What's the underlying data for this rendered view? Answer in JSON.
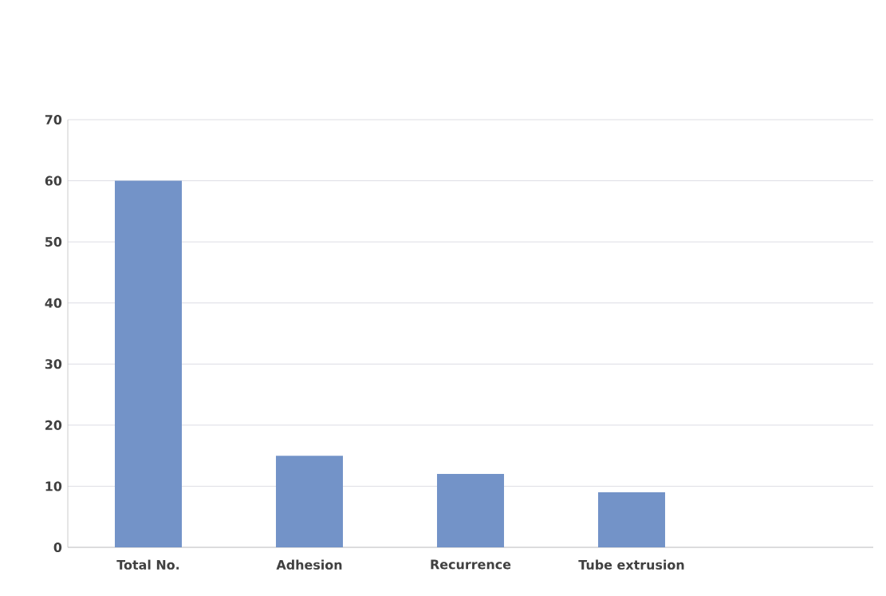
{
  "chart_data": {
    "type": "bar",
    "categories": [
      "Total No.",
      "Adhesion",
      "Recurrence",
      "Tube extrusion",
      null
    ],
    "values": [
      60,
      15,
      12,
      9,
      null
    ],
    "color": "#7393c8",
    "ylim": [
      0,
      70
    ],
    "yticks": [
      0,
      10,
      20,
      30,
      40,
      50,
      60,
      70
    ],
    "grid": "y"
  }
}
